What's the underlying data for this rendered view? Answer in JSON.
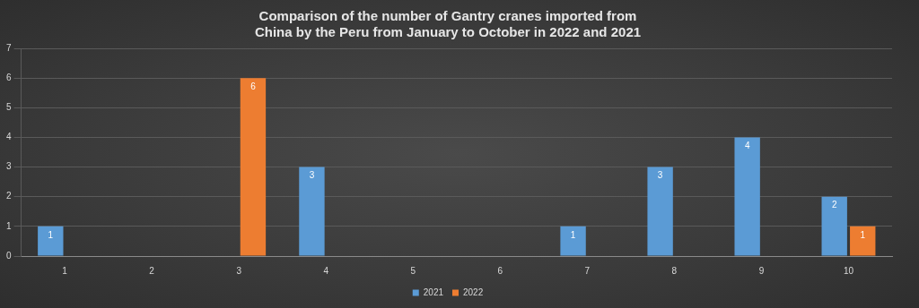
{
  "chart_data": {
    "type": "bar",
    "title": "Comparison of the number of Gantry cranes imported from China by the Peru from January to October in 2022 and 2021",
    "categories": [
      "1",
      "2",
      "3",
      "4",
      "5",
      "6",
      "7",
      "8",
      "9",
      "10"
    ],
    "series": [
      {
        "name": "2021",
        "color": "#5b9bd5",
        "values": [
          1,
          null,
          null,
          3,
          null,
          null,
          1,
          3,
          4,
          2
        ]
      },
      {
        "name": "2022",
        "color": "#ed7d31",
        "values": [
          null,
          null,
          6,
          null,
          null,
          null,
          null,
          null,
          null,
          1
        ]
      }
    ],
    "ylim": [
      0,
      7
    ],
    "yticks": [
      0,
      1,
      2,
      3,
      4,
      5,
      6,
      7
    ],
    "grid": true,
    "legend": "bottom",
    "data_labels": true
  }
}
